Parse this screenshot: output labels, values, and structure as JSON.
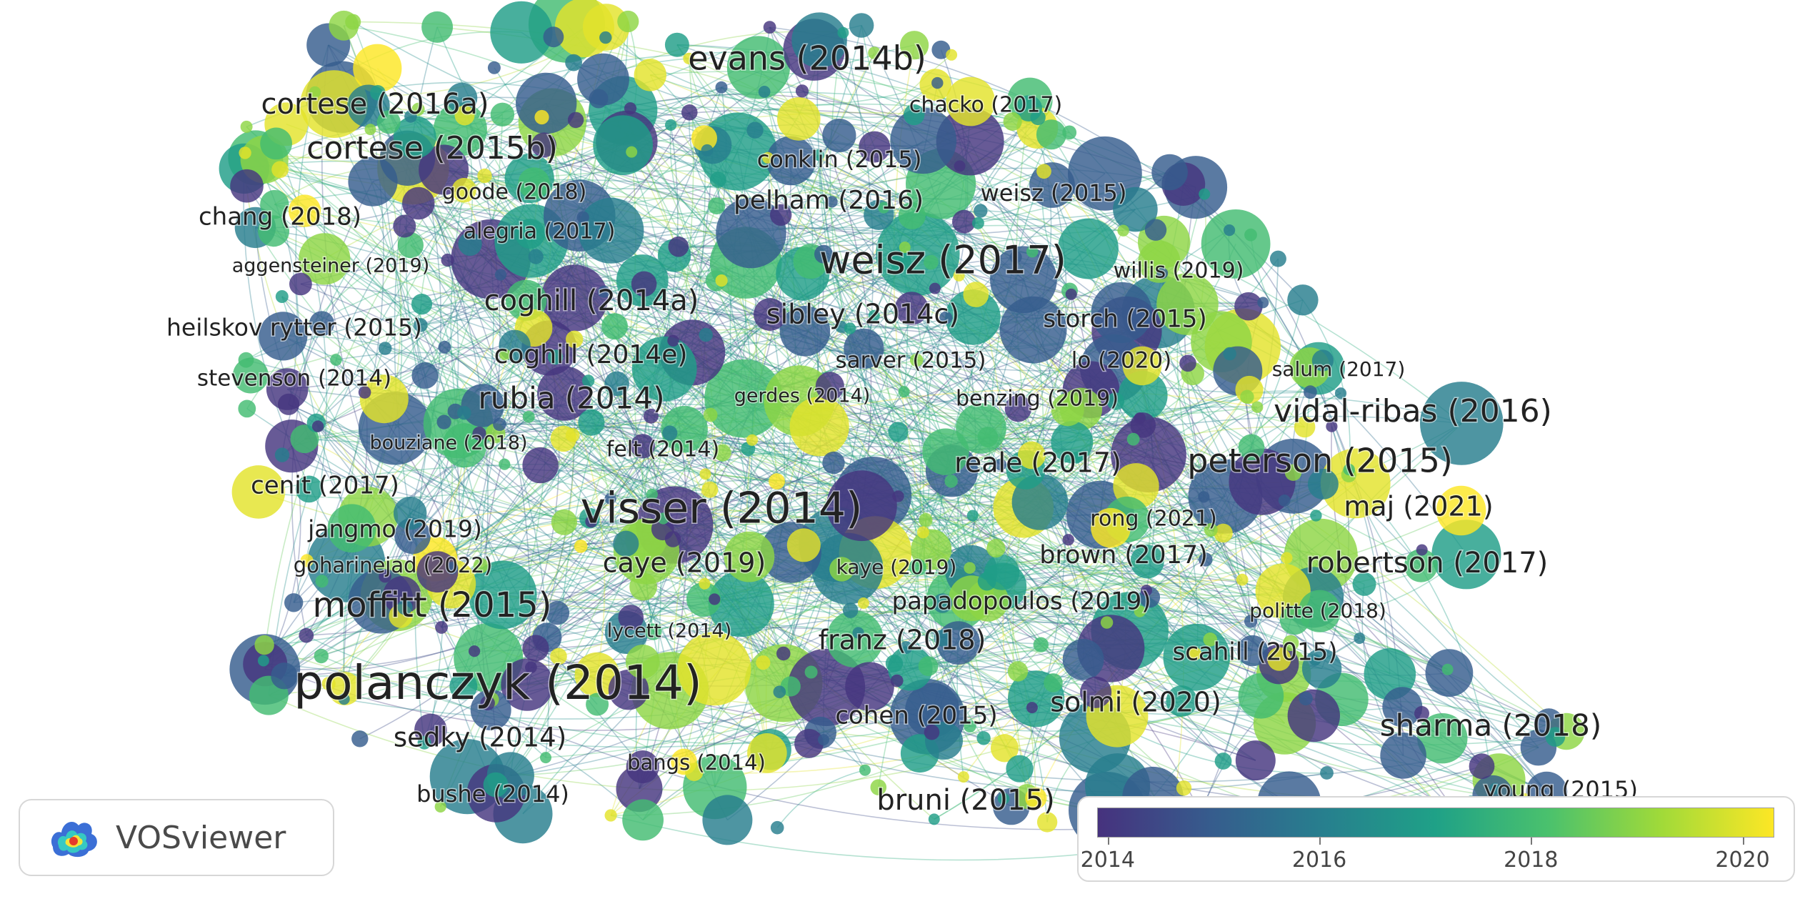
{
  "app": {
    "name": "VOSviewer"
  },
  "legend": {
    "colors": [
      "#46327e",
      "#365c8d",
      "#277f8e",
      "#1fa187",
      "#4ac16d",
      "#a0da39",
      "#fde725"
    ],
    "ticks": [
      "2014",
      "2016",
      "2018",
      "2020"
    ],
    "range": [
      2013.9,
      2020.3
    ]
  },
  "labels": [
    {
      "text": "evans (2014b)",
      "year": 2014
    },
    {
      "text": "cortese (2016a)",
      "year": 2016
    },
    {
      "text": "chacko (2017)",
      "year": 2017
    },
    {
      "text": "cortese (2015b)",
      "year": 2015
    },
    {
      "text": "conklin (2015)",
      "year": 2015
    },
    {
      "text": "goode (2018)",
      "year": 2018
    },
    {
      "text": "weisz (2015)",
      "year": 2015
    },
    {
      "text": "pelham (2016)",
      "year": 2016
    },
    {
      "text": "chang (2018)",
      "year": 2018
    },
    {
      "text": "alegria (2017)",
      "year": 2017
    },
    {
      "text": "weisz (2017)",
      "year": 2017
    },
    {
      "text": "aggensteiner (2019)",
      "year": 2019
    },
    {
      "text": "willis (2019)",
      "year": 2019
    },
    {
      "text": "coghill (2014a)",
      "year": 2014
    },
    {
      "text": "sibley (2014c)",
      "year": 2014
    },
    {
      "text": "storch (2015)",
      "year": 2015
    },
    {
      "text": "heilskov rytter (2015)",
      "year": 2015
    },
    {
      "text": "coghill (2014e)",
      "year": 2014
    },
    {
      "text": "sarver (2015)",
      "year": 2015
    },
    {
      "text": "lo (2020)",
      "year": 2020
    },
    {
      "text": "salum (2017)",
      "year": 2017
    },
    {
      "text": "stevenson (2014)",
      "year": 2014
    },
    {
      "text": "rubia (2014)",
      "year": 2014
    },
    {
      "text": "gerdes (2014)",
      "year": 2014
    },
    {
      "text": "benzing (2019)",
      "year": 2019
    },
    {
      "text": "vidal-ribas (2016)",
      "year": 2016
    },
    {
      "text": "bouziane (2018)",
      "year": 2018
    },
    {
      "text": "felt (2014)",
      "year": 2014
    },
    {
      "text": "reale (2017)",
      "year": 2017
    },
    {
      "text": "peterson (2015)",
      "year": 2015
    },
    {
      "text": "cenit (2017)",
      "year": 2017
    },
    {
      "text": "visser (2014)",
      "year": 2014
    },
    {
      "text": "maj (2021)",
      "year": 2021
    },
    {
      "text": "rong (2021)",
      "year": 2021
    },
    {
      "text": "jangmo (2019)",
      "year": 2019
    },
    {
      "text": "brown (2017)",
      "year": 2017
    },
    {
      "text": "goharinejad (2022)",
      "year": 2022
    },
    {
      "text": "caye (2019)",
      "year": 2019
    },
    {
      "text": "kaye (2019)",
      "year": 2019
    },
    {
      "text": "robertson (2017)",
      "year": 2017
    },
    {
      "text": "moffitt (2015)",
      "year": 2015
    },
    {
      "text": "papadopoulos (2019)",
      "year": 2019
    },
    {
      "text": "politte (2018)",
      "year": 2018
    },
    {
      "text": "lycett (2014)",
      "year": 2014
    },
    {
      "text": "franz (2018)",
      "year": 2018
    },
    {
      "text": "scahill (2015)",
      "year": 2015
    },
    {
      "text": "polanczyk (2014)",
      "year": 2014
    },
    {
      "text": "solmi (2020)",
      "year": 2020
    },
    {
      "text": "cohen (2015)",
      "year": 2015
    },
    {
      "text": "sharma (2018)",
      "year": 2018
    },
    {
      "text": "sedky (2014)",
      "year": 2014
    },
    {
      "text": "bangs (2014)",
      "year": 2014
    },
    {
      "text": "young (2015)",
      "year": 2015
    },
    {
      "text": "bushe (2014)",
      "year": 2014
    },
    {
      "text": "bruni (2015)",
      "year": 2015
    }
  ]
}
